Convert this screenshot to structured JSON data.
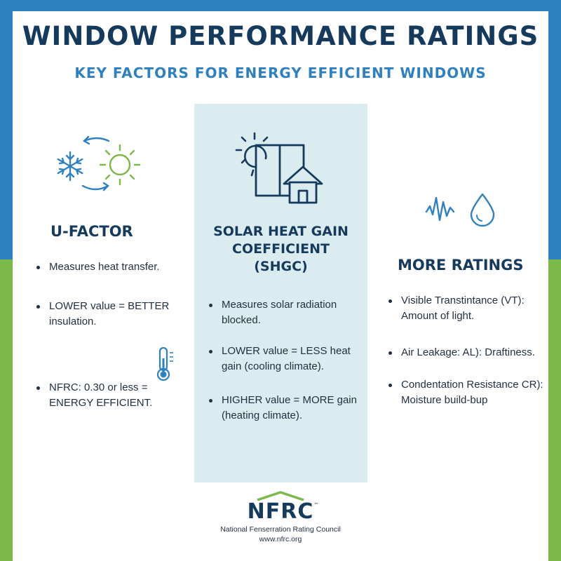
{
  "header": {
    "title": "WINDOW PERFORMANCE RATINGS",
    "subtitle": "KEY FACTORS FOR ENERGY EFFICIENT WINDOWS"
  },
  "columns": {
    "left": {
      "heading": "U-FACTOR",
      "bullets": [
        "Measures heat transfer.",
        "LOWER value = BETTER insulation.",
        "NFRC: 0.30 or less = ENERGY EFFICIENT."
      ]
    },
    "middle": {
      "heading_lines": [
        "SOLAR HEAT GAIN",
        "COEFFICIENT",
        "(SHGC)"
      ],
      "bullets": [
        "Measures solar radiation blocked.",
        "LOWER value = LESS heat gain (cooling climate).",
        "HIGHER value = MORE gain (heating climate)."
      ]
    },
    "right": {
      "heading": "MORE RATINGS",
      "bullets": [
        "Visible Transtintance (VT): Amount of light.",
        "Air Leakage: AL): Draftiness.",
        "Condentation Resistance CR): Moisture build-bup"
      ]
    }
  },
  "logo": {
    "name": "NFRC",
    "trademark": "™",
    "organization": "National Fenserration Rating Council",
    "url": "www.nfrc.org"
  },
  "icons": {
    "left_top": [
      "snowflake-icon",
      "sun-icon",
      "cycle-arrows-icon"
    ],
    "left_mid": "thermometer-icon",
    "middle": [
      "sun-icon",
      "window-icon",
      "house-icon"
    ],
    "right": [
      "sound-wave-icon",
      "water-drop-icon"
    ]
  },
  "colors": {
    "top_band": "#2f80bf",
    "bottom_band": "#7cb84a",
    "heading_navy": "#163a5c",
    "subtitle_blue": "#2f80bf",
    "middle_panel": "#dbecf1",
    "icon_green": "#7cb84a",
    "icon_blue": "#2f80bf"
  }
}
